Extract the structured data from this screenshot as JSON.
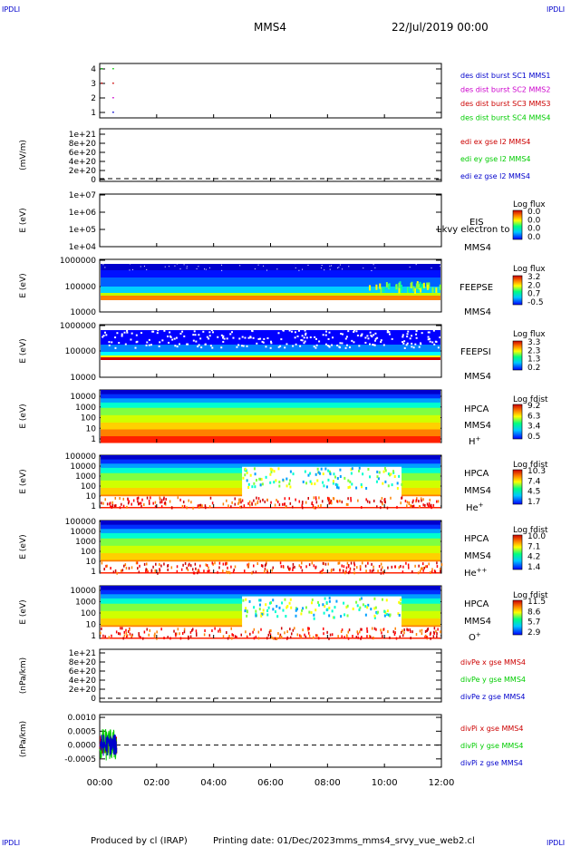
{
  "corner_left_top": "IPDLI",
  "corner_right_top": "IPDLI",
  "corner_left_bottom": "IPDLI",
  "corner_right_bottom": "IPDLI",
  "header": {
    "mission": "MMS4",
    "date": "22/Jul/2019 00:00"
  },
  "footer": {
    "produced": "Produced by cl (IRAP)",
    "printing": "Printing date: 01/Dec/2023",
    "file": "mms_mms4_srvy_vue_web2.cl"
  },
  "time_axis": {
    "labels": [
      "00:00",
      "02:00",
      "04:00",
      "06:00",
      "08:00",
      "10:00",
      "12:00"
    ],
    "range_hours": [
      0,
      12
    ]
  },
  "colors": {
    "c1": "#0000cc",
    "c2": "#cc00cc",
    "c3": "#cc0000",
    "c4": "#00cc00",
    "x": "#cc0000",
    "y": "#00cc00",
    "z": "#0000cc"
  },
  "chart_data": [
    {
      "type": "scatter",
      "panel": "burst",
      "yticks": [
        "4",
        "3",
        "2",
        "1"
      ],
      "ylim": [
        0.5,
        4.5
      ],
      "legend": [
        "des dist burst SC1 MMS1",
        "des dist burst SC2 MMS2",
        "des dist burst SC3 MMS3",
        "des dist burst SC4 MMS4"
      ],
      "series": [
        {
          "name": "des dist burst SC1 MMS1",
          "y": 1,
          "x": [
            0.45
          ]
        },
        {
          "name": "des dist burst SC2 MMS2",
          "y": 2,
          "x": [
            0.45
          ]
        },
        {
          "name": "des dist burst SC3 MMS3",
          "y": 3,
          "x": [
            0.05,
            0.45
          ]
        },
        {
          "name": "des dist burst SC4 MMS4",
          "y": 4,
          "x": [
            0.05,
            0.45
          ]
        }
      ]
    },
    {
      "type": "line",
      "panel": "edi_e",
      "ylabel": "(mV/m)",
      "yticks": [
        "1e+21",
        "8e+20",
        "6e+20",
        "4e+20",
        "2e+20",
        "0"
      ],
      "legend": [
        "edi ex gse l2 MMS4",
        "edi ey gse l2 MMS4",
        "edi ez gse l2 MMS4"
      ]
    },
    {
      "type": "heatmap",
      "panel": "eis",
      "ylabel": "E (eV)",
      "yticks": [
        "1e+07",
        "1e+06",
        "1e+05",
        "1e+04"
      ],
      "instrument": "EIS",
      "sc": "MMS4",
      "overlay": "Lkvy electron to",
      "cbar_title": "Log flux",
      "cbar_ticks": [
        "0.0",
        "0.0",
        "0.0",
        "0.0"
      ]
    },
    {
      "type": "heatmap",
      "panel": "feepse",
      "ylabel": "E (eV)",
      "yticks": [
        "1000000",
        "100000",
        "10000"
      ],
      "instrument": "FEEPSE",
      "sc": "MMS4",
      "cbar_title": "Log flux",
      "cbar_ticks": [
        "3.2",
        "2.0",
        "0.7",
        "-0.5"
      ]
    },
    {
      "type": "heatmap",
      "panel": "feepsi",
      "ylabel": "E (eV)",
      "yticks": [
        "1000000",
        "100000",
        "10000"
      ],
      "instrument": "FEEPSI",
      "sc": "MMS4",
      "cbar_title": "Log flux",
      "cbar_ticks": [
        "3.3",
        "2.3",
        "1.3",
        "0.2"
      ]
    },
    {
      "type": "heatmap",
      "panel": "hpca_h",
      "ylabel": "E (eV)",
      "yticks": [
        "10000",
        "1000",
        "100",
        "10",
        "1"
      ],
      "instrument": "HPCA",
      "sc": "MMS4",
      "species": "H",
      "charge": "+",
      "cbar_title": "Log fdist",
      "cbar_ticks": [
        "9.2",
        "6.3",
        "3.4",
        "0.5"
      ]
    },
    {
      "type": "heatmap",
      "panel": "hpca_he",
      "ylabel": "E (eV)",
      "yticks": [
        "100000",
        "10000",
        "1000",
        "100",
        "10",
        "1"
      ],
      "instrument": "HPCA",
      "sc": "MMS4",
      "species": "He",
      "charge": "+",
      "cbar_title": "Log fdist",
      "cbar_ticks": [
        "10.3",
        "7.4",
        "4.5",
        "1.7"
      ]
    },
    {
      "type": "heatmap",
      "panel": "hpca_hepp",
      "ylabel": "E (eV)",
      "yticks": [
        "100000",
        "10000",
        "1000",
        "100",
        "10",
        "1"
      ],
      "instrument": "HPCA",
      "sc": "MMS4",
      "species": "He",
      "charge": "++",
      "cbar_title": "Log fdist",
      "cbar_ticks": [
        "10.0",
        "7.1",
        "4.2",
        "1.4"
      ]
    },
    {
      "type": "heatmap",
      "panel": "hpca_o",
      "ylabel": "E (eV)",
      "yticks": [
        "10000",
        "1000",
        "100",
        "10",
        "1"
      ],
      "instrument": "HPCA",
      "sc": "MMS4",
      "species": "O",
      "charge": "+",
      "cbar_title": "Log fdist",
      "cbar_ticks": [
        "11.5",
        "8.6",
        "5.7",
        "2.9"
      ]
    },
    {
      "type": "line",
      "panel": "divpe",
      "ylabel": "(nPa/km)",
      "yticks": [
        "1e+21",
        "8e+20",
        "6e+20",
        "4e+20",
        "2e+20",
        "0"
      ],
      "legend": [
        "divPe x gse MMS4",
        "divPe y gse MMS4",
        "divPe z gse MMS4"
      ]
    },
    {
      "type": "line",
      "panel": "divpi",
      "ylabel": "(nPa/km)",
      "yticks": [
        "0.0010",
        "0.0005",
        "0.0000",
        "-0.0005"
      ],
      "ylim": [
        -0.0008,
        0.0011
      ],
      "legend": [
        "divPi x gse MMS4",
        "divPi y gse MMS4",
        "divPi z gse MMS4"
      ],
      "data_extent_hours": [
        0,
        0.6
      ]
    }
  ]
}
